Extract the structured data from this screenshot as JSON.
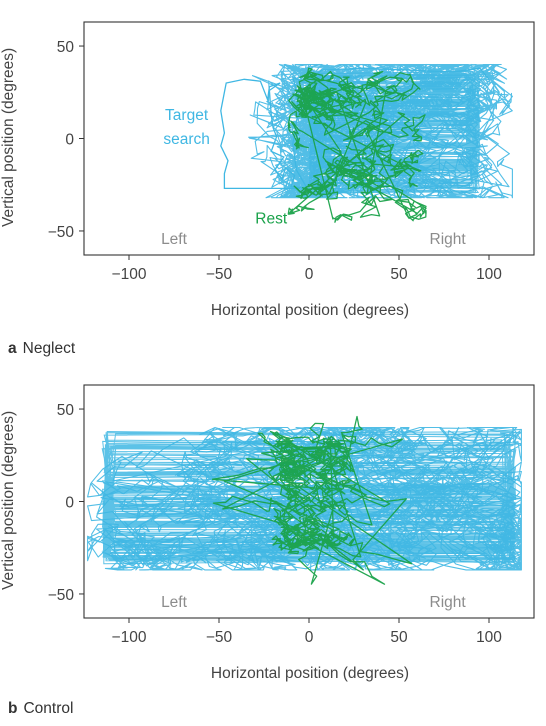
{
  "chart_data": [
    {
      "panel_letter": "a",
      "panel_name": "Neglect",
      "type": "line",
      "xlabel": "Horizontal position (degrees)",
      "ylabel": "Vertical position (degrees)",
      "xlim": [
        -125,
        125
      ],
      "ylim": [
        -63,
        63
      ],
      "xticks": [
        -100,
        -50,
        0,
        50,
        100
      ],
      "yticks": [
        50,
        0,
        -50
      ],
      "tick_labels_x": [
        "−100",
        "−50",
        "0",
        "50",
        "100"
      ],
      "tick_labels_y": [
        "50",
        "0",
        "−50"
      ],
      "side_labels": {
        "left": "Left",
        "right": "Right"
      },
      "grid": false,
      "annotations": {
        "target_search": [
          "Target",
          "search"
        ],
        "rest": "Rest"
      },
      "series": [
        {
          "color": "#3fb7e3",
          "x_range": [
            -47,
            113
          ],
          "y_range": [
            -32,
            40
          ],
          "dense_x_range": [
            0,
            95
          ],
          "dense_y_range": [
            -30,
            35
          ],
          "outline_path": [
            [
              -5,
              -27
            ],
            [
              -47,
              -27
            ],
            [
              -47,
              -19
            ],
            [
              -45,
              -12
            ],
            [
              -49,
              -4
            ],
            [
              -47,
              3
            ],
            [
              -49,
              15
            ],
            [
              -47,
              25
            ],
            [
              -46,
              30
            ],
            [
              -36,
              32
            ],
            [
              -27,
              31
            ],
            [
              -23,
              21
            ],
            [
              -22,
              28
            ],
            [
              -16,
              30
            ],
            [
              -22,
              26
            ],
            [
              -21,
              13
            ],
            [
              -20,
              6
            ],
            [
              -18,
              1
            ],
            [
              -21,
              -7
            ],
            [
              -14,
              -10
            ],
            [
              -19,
              -17
            ],
            [
              -15,
              -22
            ],
            [
              -13,
              -16
            ],
            [
              -8,
              -20
            ],
            [
              -10,
              -26
            ],
            [
              -1,
              -27
            ],
            [
              -7,
              -17
            ],
            [
              -9,
              -3
            ],
            [
              -6,
              14
            ],
            [
              -7,
              26
            ],
            [
              -9,
              33
            ],
            [
              -2,
              30
            ],
            [
              7,
              37
            ],
            [
              30,
              38
            ],
            [
              80,
              36
            ],
            [
              95,
              38
            ],
            [
              100,
              32
            ]
          ]
        },
        {
          "color": "#1aa24a",
          "x_range": [
            -12,
            65
          ],
          "y_range": [
            -56,
            38
          ],
          "dense_x_range": [
            0,
            55
          ],
          "dense_y_range": [
            -40,
            30
          ]
        }
      ]
    },
    {
      "panel_letter": "b",
      "panel_name": "Control",
      "type": "line",
      "xlabel": "Horizontal position (degrees)",
      "ylabel": "Vertical position (degrees)",
      "xlim": [
        -125,
        125
      ],
      "ylim": [
        -63,
        63
      ],
      "xticks": [
        -100,
        -50,
        0,
        50,
        100
      ],
      "yticks": [
        50,
        0,
        -50
      ],
      "tick_labels_x": [
        "−100",
        "−50",
        "0",
        "50",
        "100"
      ],
      "tick_labels_y": [
        "50",
        "0",
        "−50"
      ],
      "side_labels": {
        "left": "Left",
        "right": "Right"
      },
      "grid": false,
      "annotations": {},
      "series": [
        {
          "color": "#3fb7e3",
          "x_range": [
            -123,
            118
          ],
          "y_range": [
            -37,
            40
          ],
          "dense_x_range": [
            -115,
            115
          ],
          "dense_y_range": [
            -33,
            37
          ]
        },
        {
          "color": "#1aa24a",
          "x_range": [
            -70,
            80
          ],
          "y_range": [
            -55,
            57
          ],
          "dense_x_range": [
            -10,
            15
          ],
          "dense_y_range": [
            -20,
            30
          ]
        }
      ]
    }
  ]
}
